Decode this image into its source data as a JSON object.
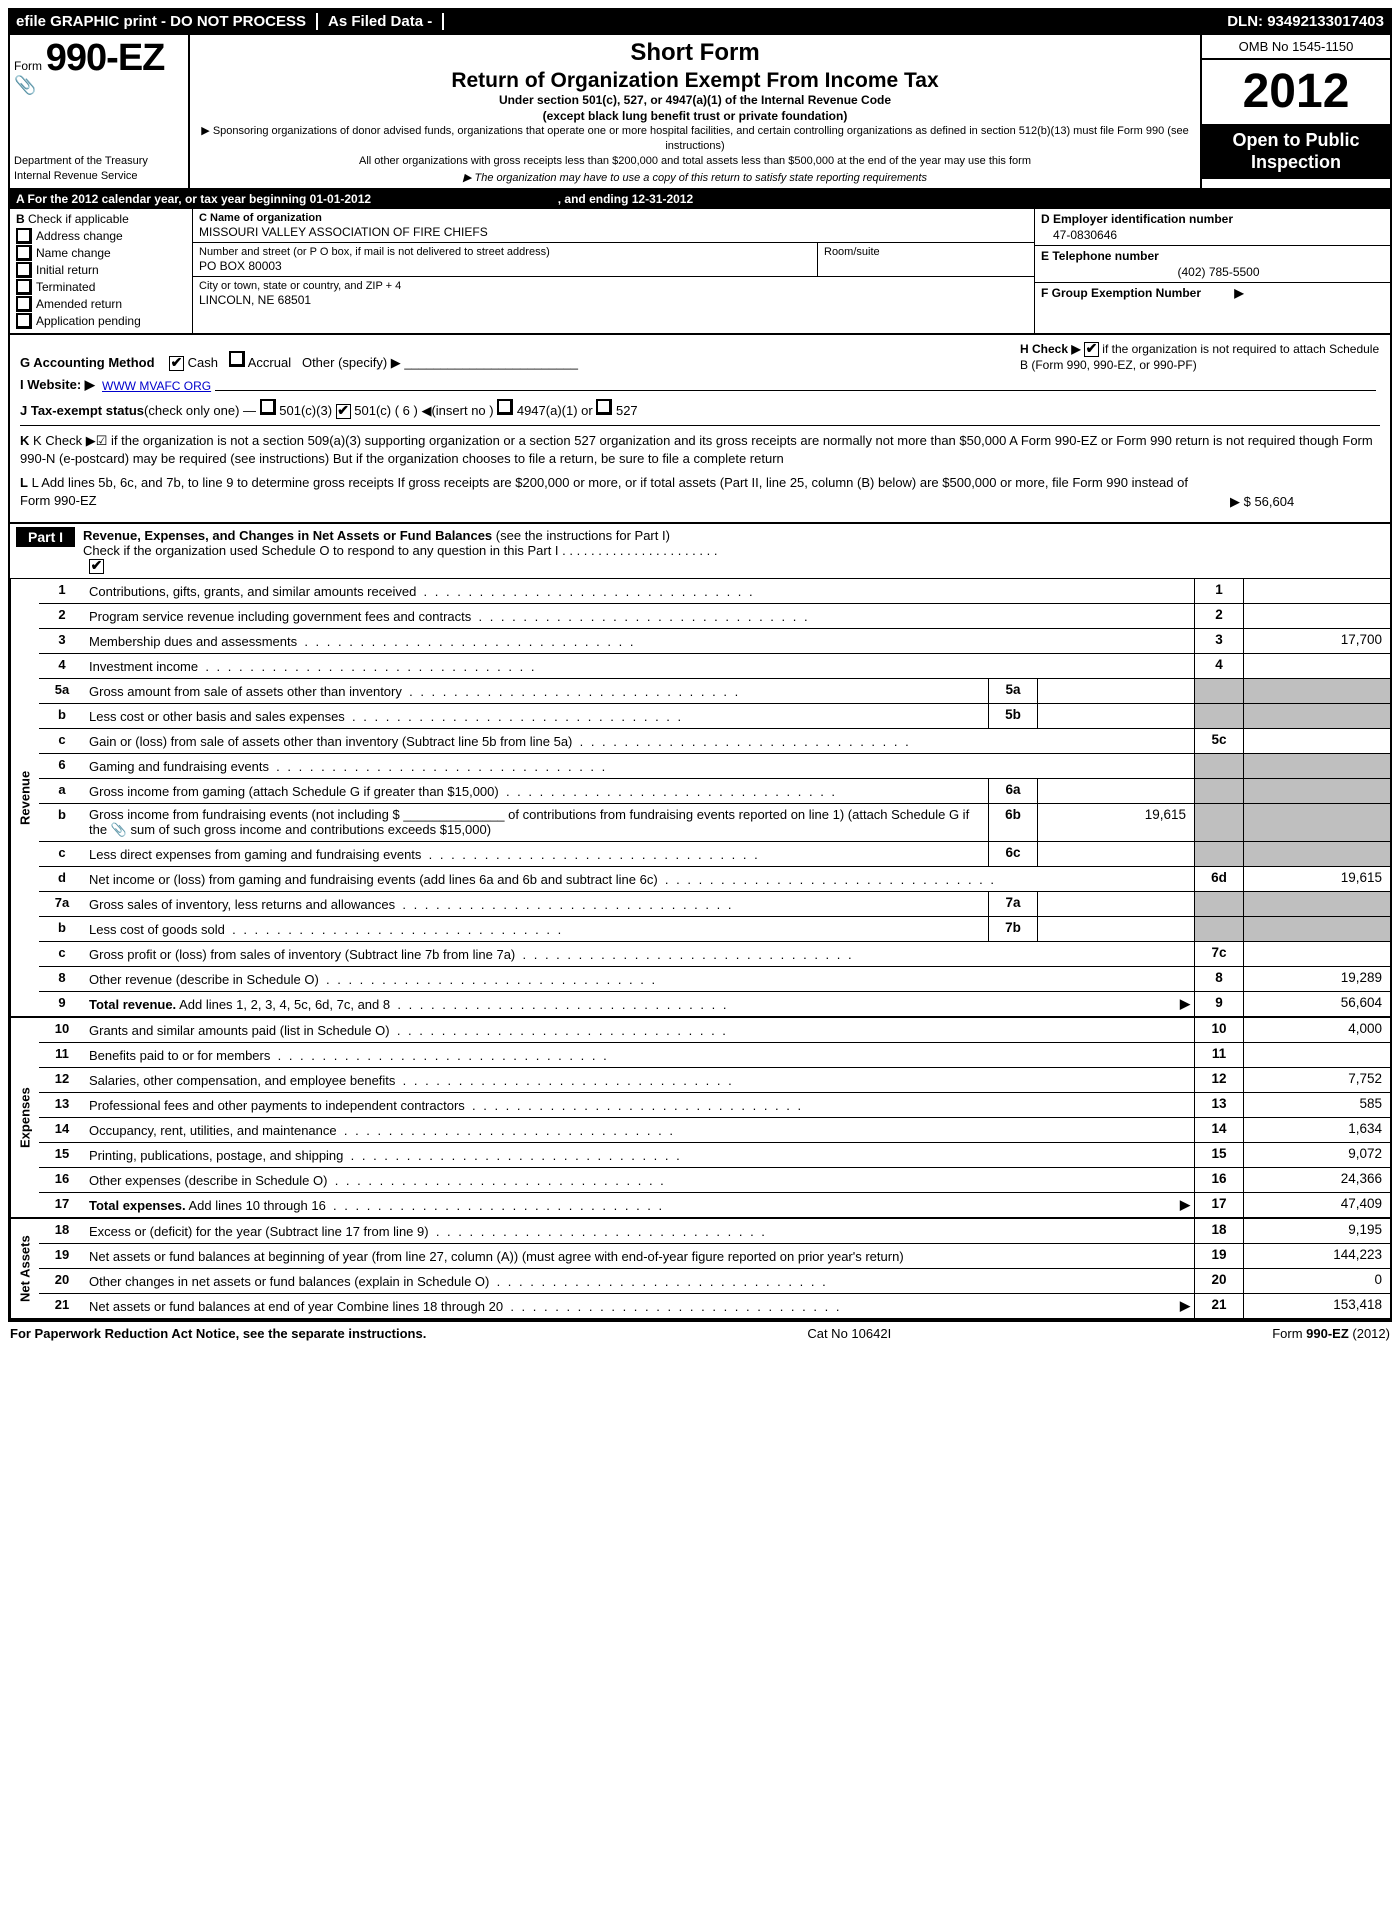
{
  "top_bar": {
    "efile": "efile GRAPHIC print - DO NOT PROCESS",
    "as_filed": "As Filed Data -",
    "dln_label": "DLN:",
    "dln": "93492133017403"
  },
  "header": {
    "form_prefix": "Form",
    "form_number": "990-EZ",
    "dept1": "Department of the Treasury",
    "dept2": "Internal Revenue Service",
    "title1": "Short Form",
    "title2": "Return of Organization Exempt From Income Tax",
    "sub1": "Under section 501(c), 527, or 4947(a)(1) of the Internal Revenue Code",
    "sub2": "(except black lung benefit trust or private foundation)",
    "small1": "▶ Sponsoring organizations of donor advised funds, organizations that operate one or more hospital facilities, and certain controlling organizations as defined in section 512(b)(13) must file Form 990 (see instructions)",
    "small2": "All other organizations with gross receipts less than $200,000 and total assets less than $500,000 at the end of the year may use this form",
    "small3": "▶ The organization may have to use a copy of this return to satisfy state reporting requirements",
    "omb": "OMB No  1545-1150",
    "year": "2012",
    "open": "Open to Public Inspection"
  },
  "row_a": {
    "label": "A  For the 2012 calendar year, or tax year beginning ",
    "begin": "01-01-2012",
    "mid": " , and ending ",
    "end": "12-31-2012"
  },
  "section_b": {
    "head_letter": "B",
    "head_text": "Check if applicable",
    "items": [
      "Address change",
      "Name change",
      "Initial return",
      "Terminated",
      "Amended return",
      "Application pending"
    ]
  },
  "section_c": {
    "name_label": "C Name of organization",
    "name_val": "MISSOURI VALLEY ASSOCIATION OF FIRE CHIEFS",
    "addr_label": "Number and street (or P  O  box, if mail is not delivered to street address)",
    "room_label": "Room/suite",
    "addr_val": "PO BOX 80003",
    "city_label": "City or town, state or country, and ZIP + 4",
    "city_val": "LINCOLN, NE  68501"
  },
  "section_de": {
    "d_label": "D Employer identification number",
    "d_val": "47-0830646",
    "e_label": "E Telephone number",
    "e_val": "(402) 785-5500",
    "f_label": "F Group Exemption Number",
    "f_arrow": "▶"
  },
  "lines_mid": {
    "g_label": "G Accounting Method",
    "g_opts": [
      "Cash",
      "Accrual",
      "Other (specify) ▶"
    ],
    "h_text1": "H  Check ▶",
    "h_text2": " if the organization is not required to attach Schedule B (Form 990, 990-EZ, or 990-PF)",
    "i_label": "I Website: ▶",
    "i_val": "WWW MVAFC ORG",
    "j_label": "J Tax-exempt status",
    "j_paren": "(check only one) —",
    "j_opts": [
      "501(c)(3)",
      "501(c) ( 6 ) ◀(insert no )",
      "4947(a)(1) or",
      "527"
    ],
    "k_text": "K Check ▶☑  if the organization is not a section 509(a)(3) supporting organization or a section 527 organization and its gross receipts are normally not more than $50,000  A Form 990-EZ or Form 990 return is not required though Form 990-N (e-postcard) may be required (see instructions)  But if the organization chooses to file a return, be sure to file a complete return",
    "l_text": "L Add lines 5b, 6c, and 7b, to line 9 to determine gross receipts  If gross receipts are $200,000 or more, or if total assets (Part II, line 25, column (B) below) are $500,000 or more, file Form 990 instead of Form 990-EZ",
    "l_val": "▶ $ 56,604"
  },
  "part1": {
    "tab": "Part I",
    "title": "Revenue, Expenses, and Changes in Net Assets or Fund Balances",
    "paren": "(see the instructions for Part I)",
    "check_line": "Check if the organization used Schedule O to respond to any question in this Part I  .  .  .  .  .  .  .  .  .  .  .  .  .  .  .  .  .  .  .  .  .  ."
  },
  "groups": [
    {
      "side": "Revenue",
      "rows": [
        {
          "n": "1",
          "d": "Contributions, gifts, grants, and similar amounts received",
          "rn": "1",
          "ra": ""
        },
        {
          "n": "2",
          "d": "Program service revenue including government fees and contracts",
          "rn": "2",
          "ra": ""
        },
        {
          "n": "3",
          "d": "Membership dues and assessments",
          "rn": "3",
          "ra": "17,700"
        },
        {
          "n": "4",
          "d": "Investment income",
          "rn": "4",
          "ra": ""
        },
        {
          "n": "5a",
          "d": "Gross amount from sale of assets other than inventory",
          "in": "5a",
          "ia": "",
          "rn": "",
          "ra": "",
          "shade": true
        },
        {
          "n": "b",
          "d": "Less  cost or other basis and sales expenses",
          "in": "5b",
          "ia": "",
          "rn": "",
          "ra": "",
          "shade": true
        },
        {
          "n": "c",
          "d": "Gain or (loss) from sale of assets other than inventory (Subtract line 5b from line 5a)",
          "rn": "5c",
          "ra": ""
        },
        {
          "n": "6",
          "d": "Gaming and fundraising events",
          "rn": "",
          "ra": "",
          "shade": true,
          "noborder": true
        },
        {
          "n": "a",
          "d": "Gross income from gaming (attach Schedule G if greater than $15,000)",
          "in": "6a",
          "ia": "",
          "rn": "",
          "ra": "",
          "shade": true
        },
        {
          "n": "b",
          "d": "Gross income from fundraising events (not including $ ______________ of contributions from fundraising events reported on line 1) (attach Schedule G if the 📎 sum of such gross income and contributions exceeds $15,000)",
          "in": "6b",
          "ia": "19,615",
          "rn": "",
          "ra": "",
          "shade": true,
          "wrap": true
        },
        {
          "n": "c",
          "d": "Less  direct expenses from gaming and fundraising events",
          "in": "6c",
          "ia": "",
          "rn": "",
          "ra": "",
          "shade": true
        },
        {
          "n": "d",
          "d": "Net income or (loss) from gaming and fundraising events (add lines 6a and 6b and subtract line 6c)",
          "rn": "6d",
          "ra": "19,615"
        },
        {
          "n": "7a",
          "d": "Gross sales of inventory, less returns and allowances",
          "in": "7a",
          "ia": "",
          "rn": "",
          "ra": "",
          "shade": true
        },
        {
          "n": "b",
          "d": "Less  cost of goods sold",
          "in": "7b",
          "ia": "",
          "rn": "",
          "ra": "",
          "shade": true
        },
        {
          "n": "c",
          "d": "Gross profit or (loss) from sales of inventory (Subtract line 7b from line 7a)",
          "rn": "7c",
          "ra": ""
        },
        {
          "n": "8",
          "d": "Other revenue (describe in Schedule O)",
          "rn": "8",
          "ra": "19,289"
        },
        {
          "n": "9",
          "d": "Total revenue. Add lines 1, 2, 3, 4, 5c, 6d, 7c, and 8",
          "rn": "9",
          "ra": "56,604",
          "bold": true,
          "arrow": true
        }
      ]
    },
    {
      "side": "Expenses",
      "rows": [
        {
          "n": "10",
          "d": "Grants and similar amounts paid (list in Schedule O)",
          "rn": "10",
          "ra": "4,000"
        },
        {
          "n": "11",
          "d": "Benefits paid to or for members",
          "rn": "11",
          "ra": ""
        },
        {
          "n": "12",
          "d": "Salaries, other compensation, and employee benefits",
          "rn": "12",
          "ra": "7,752"
        },
        {
          "n": "13",
          "d": "Professional fees and other payments to independent contractors",
          "rn": "13",
          "ra": "585"
        },
        {
          "n": "14",
          "d": "Occupancy, rent, utilities, and maintenance",
          "rn": "14",
          "ra": "1,634"
        },
        {
          "n": "15",
          "d": "Printing, publications, postage, and shipping",
          "rn": "15",
          "ra": "9,072"
        },
        {
          "n": "16",
          "d": "Other expenses (describe in Schedule O)",
          "rn": "16",
          "ra": "24,366"
        },
        {
          "n": "17",
          "d": "Total expenses. Add lines 10 through 16",
          "rn": "17",
          "ra": "47,409",
          "bold": true,
          "arrow": true
        }
      ]
    },
    {
      "side": "Net Assets",
      "rows": [
        {
          "n": "18",
          "d": "Excess or (deficit) for the year (Subtract line 17 from line 9)",
          "rn": "18",
          "ra": "9,195"
        },
        {
          "n": "19",
          "d": "Net assets or fund balances at beginning of year (from line 27, column (A)) (must agree with end-of-year figure reported on prior year's return)",
          "rn": "19",
          "ra": "144,223",
          "wrap": true
        },
        {
          "n": "20",
          "d": "Other changes in net assets or fund balances (explain in Schedule O)",
          "rn": "20",
          "ra": "0"
        },
        {
          "n": "21",
          "d": "Net assets or fund balances at end of year  Combine lines 18 through 20",
          "rn": "21",
          "ra": "153,418",
          "arrow": true
        }
      ]
    }
  ],
  "footer": {
    "left": "For Paperwork Reduction Act Notice, see the separate instructions.",
    "mid": "Cat No  10642I",
    "right_pre": "Form ",
    "right_form": "990-EZ",
    "right_yr": " (2012)"
  }
}
